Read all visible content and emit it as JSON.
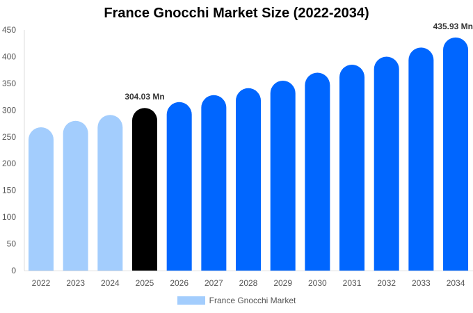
{
  "chart_data": {
    "type": "bar",
    "title": "France Gnocchi Market Size (2022-2034)",
    "categories": [
      "2022",
      "2023",
      "2024",
      "2025",
      "2026",
      "2027",
      "2028",
      "2029",
      "2030",
      "2031",
      "2032",
      "2033",
      "2034"
    ],
    "series": [
      {
        "name": "France Gnocchi Market",
        "values": [
          268,
          280,
          291,
          304.03,
          315,
          328,
          341,
          355,
          370,
          385,
          400,
          417,
          435.93
        ]
      }
    ],
    "ylim": [
      0,
      450
    ],
    "yticks": [
      0,
      50,
      100,
      150,
      200,
      250,
      300,
      350,
      400,
      450
    ],
    "data_labels": {
      "3": "304.03 Mn",
      "12": "435.93 Mn"
    },
    "colors": {
      "historical": "#a3cdfd",
      "current": "#000000",
      "forecast": "#0066ff"
    },
    "grid": false,
    "legend": "bottom"
  }
}
